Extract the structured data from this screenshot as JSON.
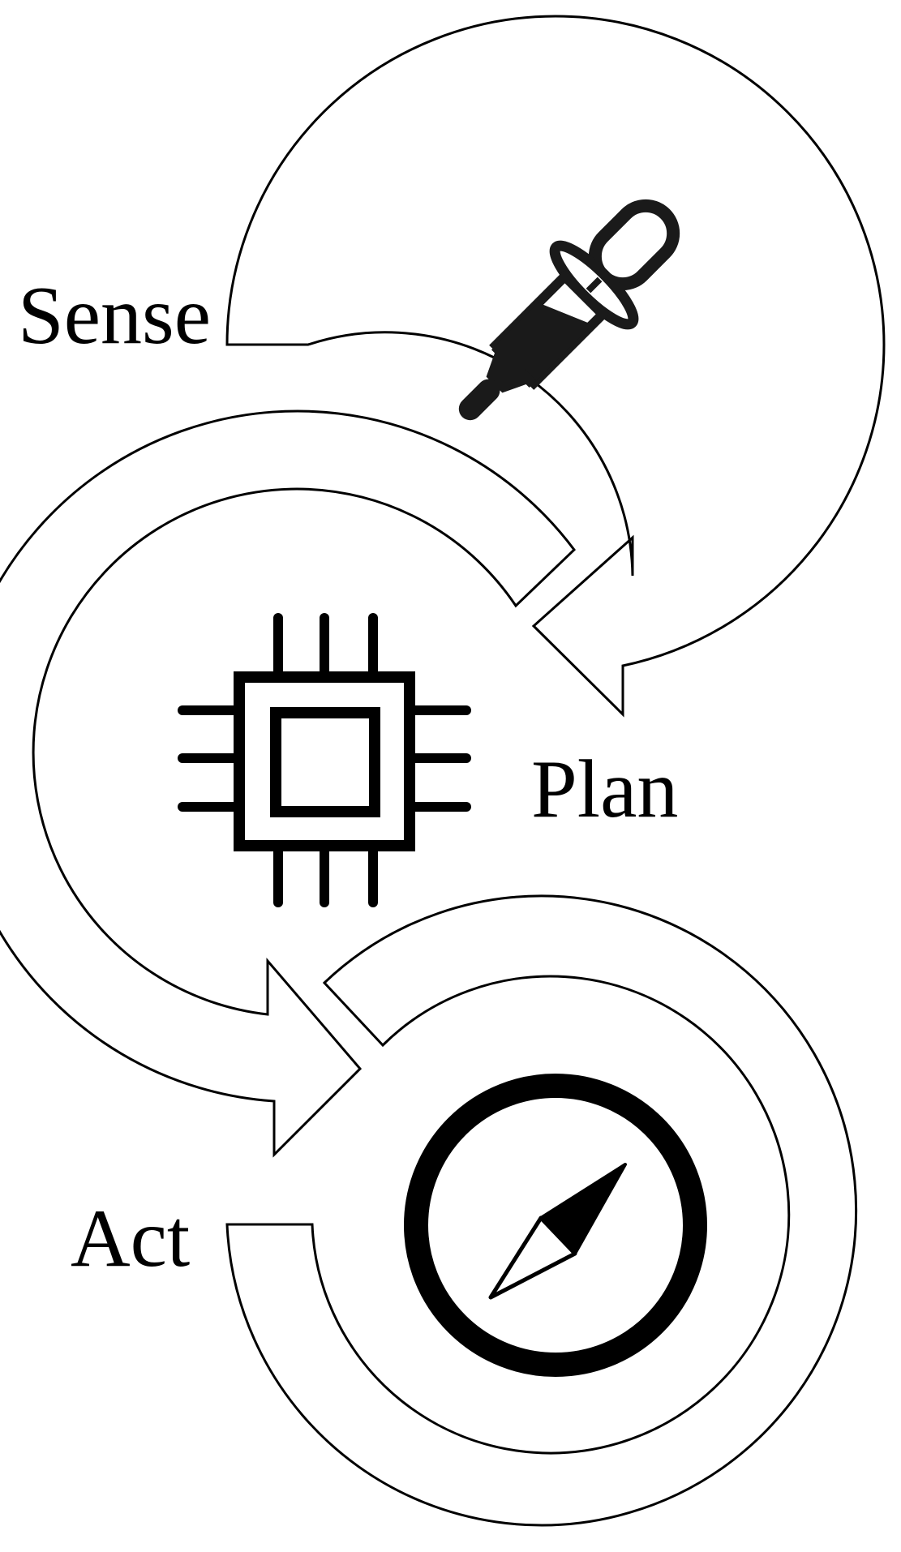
{
  "stages": [
    {
      "id": "sense",
      "label": "Sense",
      "icon": "dropper-icon"
    },
    {
      "id": "plan",
      "label": "Plan",
      "icon": "cpu-chip-icon"
    },
    {
      "id": "act",
      "label": "Act",
      "icon": "compass-icon"
    }
  ],
  "colors": {
    "stroke": "#000000",
    "fill": "#ffffff",
    "icon": "#1a1a1a"
  }
}
